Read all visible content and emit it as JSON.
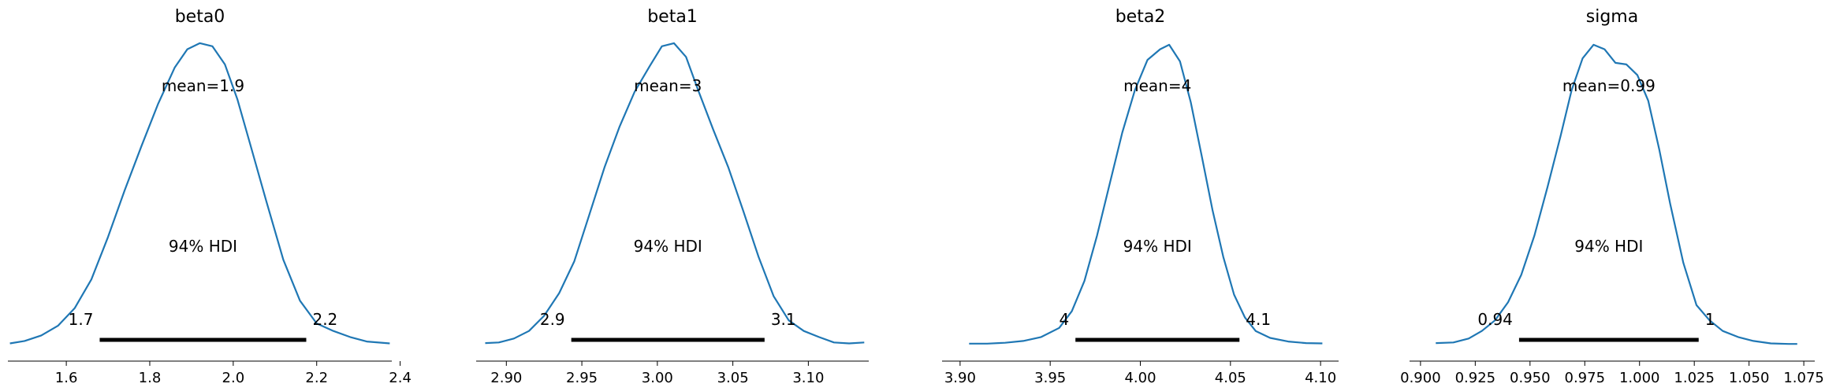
{
  "colors": {
    "density_line": "#1f77b4",
    "hdi_bar": "#000000",
    "axis": "#000000"
  },
  "chart_data": [
    {
      "type": "line",
      "kind": "posterior-density",
      "title": "beta0",
      "mean_label": "mean=1.9",
      "hdi_label": "94% HDI",
      "hdi_lower_label": "1.7",
      "hdi_upper_label": "2.2",
      "hdi": [
        1.68,
        2.175
      ],
      "xlim": [
        1.46,
        2.38
      ],
      "ticks": [
        1.6,
        1.8,
        2.0,
        2.2,
        2.4
      ],
      "tick_labels": [
        "1.6",
        "1.8",
        "2.0",
        "2.2",
        "2.4"
      ],
      "density_x": [
        1.465,
        1.5,
        1.54,
        1.58,
        1.62,
        1.66,
        1.7,
        1.74,
        1.78,
        1.82,
        1.86,
        1.89,
        1.92,
        1.95,
        1.98,
        2.01,
        2.04,
        2.08,
        2.12,
        2.16,
        2.2,
        2.24,
        2.28,
        2.32,
        2.375
      ],
      "density_y": [
        0.004,
        0.012,
        0.03,
        0.062,
        0.12,
        0.215,
        0.355,
        0.51,
        0.655,
        0.795,
        0.915,
        0.975,
        0.995,
        0.985,
        0.925,
        0.81,
        0.665,
        0.47,
        0.28,
        0.145,
        0.07,
        0.045,
        0.025,
        0.01,
        0.004
      ]
    },
    {
      "type": "line",
      "kind": "posterior-density",
      "title": "beta1",
      "mean_label": "mean=3",
      "hdi_label": "94% HDI",
      "hdi_lower_label": "2.9",
      "hdi_upper_label": "3.1",
      "hdi": [
        2.943,
        3.071
      ],
      "xlim": [
        2.88,
        3.14
      ],
      "ticks": [
        2.9,
        2.95,
        3.0,
        3.05,
        3.1
      ],
      "tick_labels": [
        "2.90",
        "2.95",
        "3.00",
        "3.05",
        "3.10"
      ],
      "density_x": [
        2.886,
        2.895,
        2.905,
        2.915,
        2.925,
        2.935,
        2.945,
        2.955,
        2.965,
        2.975,
        2.985,
        2.995,
        3.003,
        3.011,
        3.019,
        3.027,
        3.037,
        3.047,
        3.057,
        3.067,
        3.077,
        3.087,
        3.097,
        3.107,
        3.117,
        3.127,
        3.137
      ],
      "density_y": [
        0.005,
        0.007,
        0.02,
        0.045,
        0.095,
        0.17,
        0.275,
        0.43,
        0.585,
        0.72,
        0.835,
        0.92,
        0.985,
        0.995,
        0.95,
        0.84,
        0.71,
        0.585,
        0.44,
        0.29,
        0.16,
        0.08,
        0.045,
        0.025,
        0.007,
        0.004,
        0.007
      ]
    },
    {
      "type": "line",
      "kind": "posterior-density",
      "title": "beta2",
      "mean_label": "mean=4",
      "hdi_label": "94% HDI",
      "hdi_lower_label": "4",
      "hdi_upper_label": "4.1",
      "hdi": [
        3.964,
        4.055
      ],
      "xlim": [
        3.89,
        4.11
      ],
      "ticks": [
        3.9,
        3.95,
        4.0,
        4.05,
        4.1
      ],
      "tick_labels": [
        "3.90",
        "3.95",
        "4.00",
        "4.05",
        "4.10"
      ],
      "density_x": [
        3.905,
        3.915,
        3.925,
        3.935,
        3.945,
        3.955,
        3.962,
        3.969,
        3.976,
        3.983,
        3.99,
        3.997,
        4.004,
        4.011,
        4.016,
        4.022,
        4.028,
        4.034,
        4.04,
        4.046,
        4.052,
        4.058,
        4.064,
        4.072,
        4.082,
        4.092,
        4.101
      ],
      "density_y": [
        0.003,
        0.003,
        0.006,
        0.012,
        0.025,
        0.055,
        0.11,
        0.21,
        0.36,
        0.53,
        0.7,
        0.84,
        0.94,
        0.975,
        0.99,
        0.935,
        0.8,
        0.625,
        0.445,
        0.29,
        0.165,
        0.09,
        0.045,
        0.022,
        0.01,
        0.005,
        0.004
      ]
    },
    {
      "type": "line",
      "kind": "posterior-density",
      "title": "sigma",
      "mean_label": "mean=0.99",
      "hdi_label": "94% HDI",
      "hdi_lower_label": "0.94",
      "hdi_upper_label": "1",
      "hdi": [
        0.945,
        1.027
      ],
      "xlim": [
        0.895,
        1.08
      ],
      "ticks": [
        0.9,
        0.925,
        0.95,
        0.975,
        1.0,
        1.025,
        1.05,
        1.075
      ],
      "tick_labels": [
        "0.900",
        "0.925",
        "0.950",
        "0.975",
        "1.000",
        "1.025",
        "1.050",
        "1.075"
      ],
      "density_x": [
        0.907,
        0.915,
        0.922,
        0.928,
        0.934,
        0.94,
        0.946,
        0.952,
        0.958,
        0.964,
        0.969,
        0.974,
        0.979,
        0.984,
        0.989,
        0.994,
        0.999,
        1.004,
        1.009,
        1.014,
        1.02,
        1.026,
        1.032,
        1.038,
        1.045,
        1.052,
        1.06,
        1.068,
        1.072
      ],
      "density_y": [
        0.005,
        0.007,
        0.02,
        0.045,
        0.08,
        0.14,
        0.23,
        0.36,
        0.52,
        0.69,
        0.84,
        0.945,
        0.99,
        0.975,
        0.93,
        0.925,
        0.89,
        0.805,
        0.645,
        0.465,
        0.27,
        0.13,
        0.08,
        0.045,
        0.025,
        0.012,
        0.004,
        0.002,
        0.002
      ]
    }
  ]
}
